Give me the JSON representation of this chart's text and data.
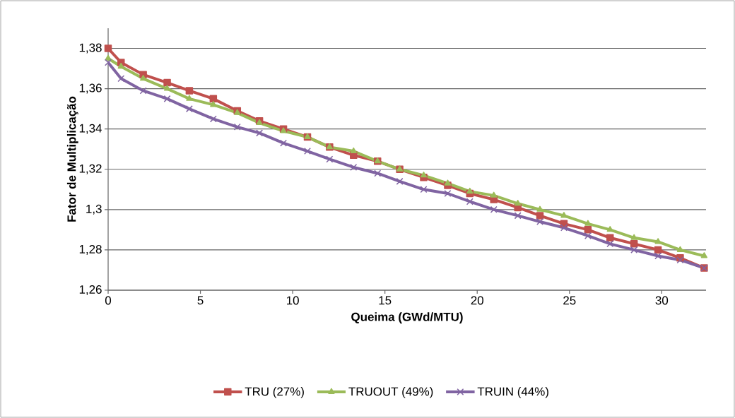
{
  "chart_data": {
    "type": "line",
    "xlabel": "Queima (GWd/MTU)",
    "ylabel": "Fator de Multiplicação",
    "x": [
      0,
      0.7,
      1.9,
      3.2,
      4.4,
      5.7,
      7.0,
      8.2,
      9.5,
      10.8,
      12.0,
      13.3,
      14.6,
      15.8,
      17.1,
      18.4,
      19.6,
      20.9,
      22.2,
      23.4,
      24.7,
      26.0,
      27.2,
      28.5,
      29.8,
      31.0,
      32.3
    ],
    "series": [
      {
        "name": "TRU (27%)",
        "color": "#c0504d",
        "marker": "square",
        "values": [
          1.38,
          1.373,
          1.367,
          1.363,
          1.359,
          1.355,
          1.349,
          1.344,
          1.34,
          1.336,
          1.331,
          1.327,
          1.324,
          1.32,
          1.316,
          1.312,
          1.308,
          1.305,
          1.301,
          1.297,
          1.293,
          1.29,
          1.286,
          1.283,
          1.28,
          1.276,
          1.271
        ]
      },
      {
        "name": "TRUOUT (49%)",
        "color": "#9bbb59",
        "marker": "triangle",
        "values": [
          1.375,
          1.371,
          1.365,
          1.36,
          1.355,
          1.352,
          1.348,
          1.343,
          1.339,
          1.336,
          1.331,
          1.329,
          1.324,
          1.32,
          1.317,
          1.313,
          1.309,
          1.307,
          1.303,
          1.3,
          1.297,
          1.293,
          1.29,
          1.286,
          1.284,
          1.28,
          1.277
        ]
      },
      {
        "name": "TRUIN (44%)",
        "color": "#8064a2",
        "marker": "cross",
        "values": [
          1.373,
          1.365,
          1.359,
          1.355,
          1.35,
          1.345,
          1.341,
          1.338,
          1.333,
          1.329,
          1.325,
          1.321,
          1.318,
          1.314,
          1.31,
          1.308,
          1.304,
          1.3,
          1.297,
          1.294,
          1.291,
          1.287,
          1.283,
          1.28,
          1.277,
          1.275,
          1.271
        ]
      }
    ],
    "xlim": [
      0,
      32.4
    ],
    "xticks": [
      0,
      5,
      10,
      15,
      20,
      25,
      30
    ],
    "ylim": [
      1.26,
      1.39
    ],
    "yticks": [
      {
        "value": 1.26,
        "label": "1,26"
      },
      {
        "value": 1.28,
        "label": "1,28"
      },
      {
        "value": 1.3,
        "label": "1,3"
      },
      {
        "value": 1.32,
        "label": "1,32"
      },
      {
        "value": 1.34,
        "label": "1,34"
      },
      {
        "value": 1.36,
        "label": "1,36"
      },
      {
        "value": 1.38,
        "label": "1,38"
      }
    ],
    "grid": "y",
    "legend": "bottom",
    "line_style": "solid"
  }
}
